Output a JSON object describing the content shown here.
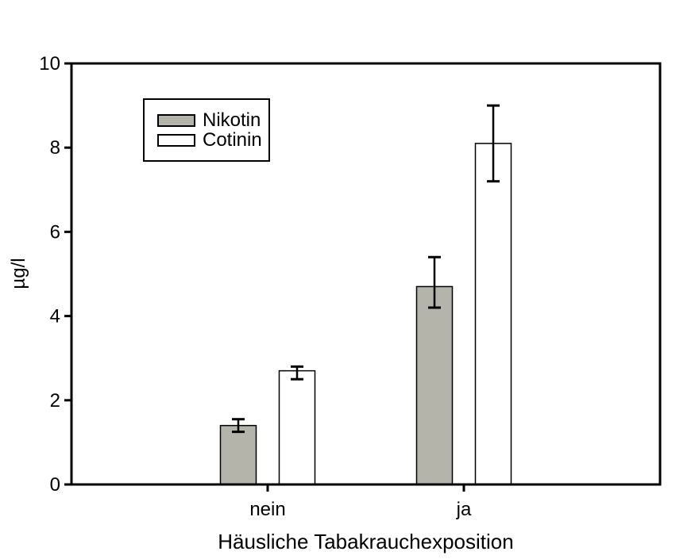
{
  "chart_data": {
    "type": "bar",
    "title": "",
    "xlabel": "Häusliche Tabakrauchexposition",
    "ylabel": "µg/l",
    "categories": [
      "nein",
      "ja"
    ],
    "series": [
      {
        "name": "Nikotin",
        "fill_color": "#b4b4aa",
        "edge_color": "#000000",
        "values": [
          1.4,
          4.7
        ],
        "error_caps_upper": [
          1.55,
          5.4
        ],
        "error_caps_lower": [
          1.25,
          4.2
        ]
      },
      {
        "name": "Cotinin",
        "fill_color": "#ffffff",
        "edge_color": "#000000",
        "values": [
          2.7,
          8.1
        ],
        "error_caps_upper": [
          2.8,
          9.0
        ],
        "error_caps_lower": [
          2.5,
          7.2
        ]
      }
    ],
    "ylim": [
      0,
      10
    ],
    "yticks": [
      0,
      2,
      4,
      6,
      8,
      10
    ],
    "grid": false,
    "error_bars": true,
    "legend_position": "inside-upper-left",
    "axis_color": "#000000",
    "background_color": "#ffffff"
  }
}
